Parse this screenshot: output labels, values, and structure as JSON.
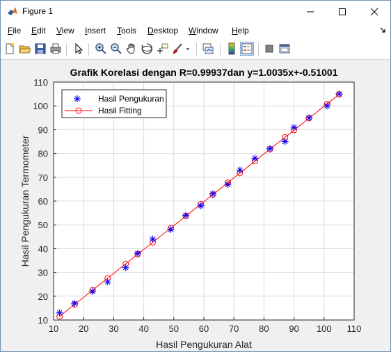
{
  "window": {
    "title": "Figure 1"
  },
  "menu": {
    "items": [
      {
        "label": "File",
        "underline": "F",
        "rest": "ile"
      },
      {
        "label": "Edit",
        "underline": "E",
        "rest": "dit"
      },
      {
        "label": "View",
        "underline": "V",
        "rest": "iew"
      },
      {
        "label": "Insert",
        "underline": "I",
        "rest": "nsert"
      },
      {
        "label": "Tools",
        "underline": "T",
        "rest": "ools"
      },
      {
        "label": "Desktop",
        "underline": "D",
        "rest": "esktop"
      },
      {
        "label": "Window",
        "underline": "W",
        "rest": "indow"
      },
      {
        "label": "Help",
        "underline": "H",
        "rest": "elp"
      }
    ]
  },
  "toolbar": {
    "icons": [
      "new-figure-icon",
      "open-file-icon",
      "save-icon",
      "print-icon",
      "pointer-icon",
      "zoom-in-icon",
      "zoom-out-icon",
      "pan-icon",
      "rotate-3d-icon",
      "data-cursor-icon",
      "brush-icon",
      "brush-dropdown-icon",
      "link-plot-icon",
      "colorbar-icon",
      "legend-icon",
      "hide-plot-tools-icon",
      "show-plot-tools-icon"
    ]
  },
  "chart_data": {
    "type": "scatter",
    "title": "Grafik Korelasi dengan R=0.99937dan y=1.0035x+-0.51001",
    "xlabel": "Hasil Pengukuran Alat",
    "ylabel": "Hasil Pengukuran Termometer",
    "xlim": [
      10,
      110
    ],
    "ylim": [
      10,
      110
    ],
    "xticks": [
      10,
      20,
      30,
      40,
      50,
      60,
      70,
      80,
      90,
      100,
      110
    ],
    "yticks": [
      10,
      20,
      30,
      40,
      50,
      60,
      70,
      80,
      90,
      100,
      110
    ],
    "grid": true,
    "legend_position": "top-left",
    "colors": {
      "measured": "#0000ff",
      "fit": "#ff0000"
    },
    "series": [
      {
        "name": "Hasil Pengukuran",
        "marker": "asterisk",
        "x": [
          12,
          17,
          23,
          28,
          34,
          38,
          43,
          49,
          54,
          59,
          63,
          68,
          72,
          77,
          82,
          87,
          90,
          95,
          101,
          105
        ],
        "y": [
          13,
          17,
          22,
          26,
          32,
          38,
          44,
          48,
          54,
          58,
          63,
          67,
          73,
          78,
          82,
          85,
          91,
          95,
          100,
          105
        ]
      },
      {
        "name": "Hasil Fitting",
        "marker": "circle-line",
        "x": [
          12,
          17,
          23,
          28,
          34,
          38,
          43,
          49,
          54,
          59,
          63,
          68,
          72,
          77,
          82,
          87,
          90,
          95,
          101,
          105
        ],
        "y": [
          11.53,
          16.55,
          22.57,
          27.59,
          33.61,
          37.62,
          42.64,
          48.66,
          53.68,
          58.7,
          62.71,
          67.73,
          71.74,
          76.76,
          81.78,
          86.79,
          89.81,
          94.82,
          100.84,
          104.86
        ]
      }
    ]
  }
}
